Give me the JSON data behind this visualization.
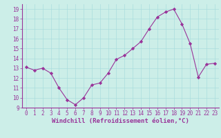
{
  "x": [
    0,
    1,
    2,
    3,
    4,
    5,
    6,
    7,
    8,
    9,
    10,
    11,
    12,
    13,
    14,
    15,
    16,
    17,
    18,
    19,
    20,
    21,
    22,
    23
  ],
  "y": [
    13.1,
    12.8,
    13.0,
    12.5,
    11.0,
    9.8,
    9.3,
    10.0,
    11.3,
    11.5,
    12.5,
    13.9,
    14.3,
    15.0,
    15.7,
    17.0,
    18.2,
    18.7,
    19.0,
    17.5,
    15.5,
    12.1,
    13.4,
    13.5
  ],
  "line_color": "#993399",
  "marker": "D",
  "marker_size": 2.2,
  "bg_color": "#cceee8",
  "grid_color": "#aadddd",
  "xlabel": "Windchill (Refroidissement éolien,°C)",
  "ylim": [
    9,
    19.5
  ],
  "xlim": [
    -0.5,
    23.5
  ],
  "yticks": [
    9,
    10,
    11,
    12,
    13,
    14,
    15,
    16,
    17,
    18,
    19
  ],
  "xticks": [
    0,
    1,
    2,
    3,
    4,
    5,
    6,
    7,
    8,
    9,
    10,
    11,
    12,
    13,
    14,
    15,
    16,
    17,
    18,
    19,
    20,
    21,
    22,
    23
  ],
  "tick_label_fontsize": 5.5,
  "xlabel_fontsize": 6.5
}
